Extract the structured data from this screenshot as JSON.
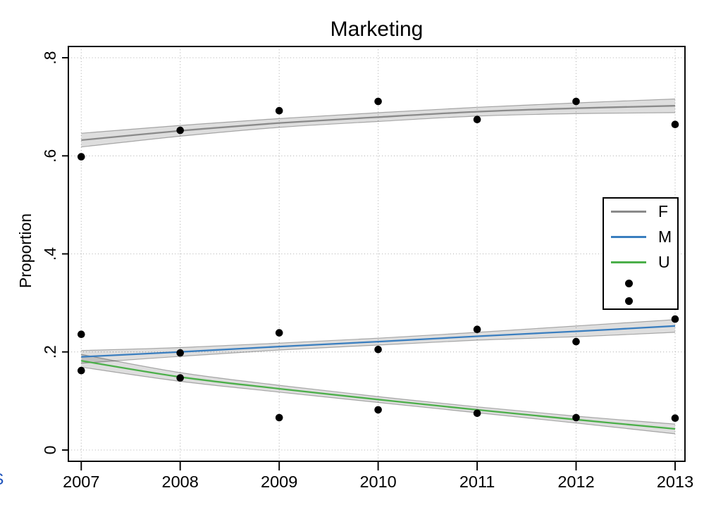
{
  "title": "Marketing",
  "edge_fragment": {
    "text": "S",
    "color": "#1f53bb"
  },
  "chart_data": {
    "type": "line",
    "title": "Marketing",
    "xlabel": "",
    "ylabel": "Proportion",
    "x": [
      2007,
      2008,
      2009,
      2010,
      2011,
      2012,
      2013
    ],
    "x_tick_labels": [
      "2007",
      "2008",
      "2009",
      "2010",
      "2011",
      "2012",
      "2013"
    ],
    "y_ticks": [
      {
        "v": 0.0,
        "label": "0"
      },
      {
        "v": 0.2,
        "label": ".2"
      },
      {
        "v": 0.4,
        "label": ".4"
      },
      {
        "v": 0.6,
        "label": ".6"
      },
      {
        "v": 0.8,
        "label": ".8"
      }
    ],
    "xlim": [
      2006.87,
      2013.1
    ],
    "ylim": [
      -0.023,
      0.823
    ],
    "grid": {
      "style": "dotted",
      "color": "#b0b0b0"
    },
    "axis_color": "#000000",
    "background": "#ffffff",
    "fit_series": [
      {
        "name": "F",
        "color": "#8a8a8a",
        "band_fill": "rgba(0,0,0,0.13)",
        "band_edge": "rgba(0,0,0,0.30)",
        "values": [
          0.632,
          0.651,
          0.667,
          0.679,
          0.69,
          0.697,
          0.702
        ],
        "ci_upper": [
          0.646,
          0.662,
          0.676,
          0.688,
          0.699,
          0.708,
          0.716
        ],
        "ci_lower": [
          0.618,
          0.64,
          0.658,
          0.67,
          0.681,
          0.686,
          0.688
        ]
      },
      {
        "name": "M",
        "color": "#3a7ebf",
        "band_fill": "rgba(0,0,0,0.13)",
        "band_edge": "rgba(0,0,0,0.30)",
        "values": [
          0.19,
          0.2,
          0.211,
          0.221,
          0.232,
          0.242,
          0.253
        ],
        "ci_upper": [
          0.203,
          0.209,
          0.218,
          0.228,
          0.24,
          0.253,
          0.266
        ],
        "ci_lower": [
          0.177,
          0.191,
          0.204,
          0.214,
          0.224,
          0.231,
          0.24
        ]
      },
      {
        "name": "U",
        "color": "#4caf4a",
        "band_fill": "rgba(0,0,0,0.13)",
        "band_edge": "rgba(0,0,0,0.30)",
        "values": [
          0.182,
          0.149,
          0.125,
          0.103,
          0.082,
          0.062,
          0.043
        ],
        "ci_upper": [
          0.195,
          0.158,
          0.132,
          0.109,
          0.088,
          0.069,
          0.053
        ],
        "ci_lower": [
          0.169,
          0.14,
          0.118,
          0.097,
          0.076,
          0.055,
          0.033
        ]
      }
    ],
    "scatter_series": [
      {
        "name": "F points",
        "color": "#000000",
        "values": [
          0.598,
          0.652,
          0.692,
          0.711,
          0.674,
          0.711,
          0.664
        ]
      },
      {
        "name": "M points",
        "color": "#000000",
        "values": [
          0.236,
          0.198,
          0.239,
          0.205,
          0.246,
          0.221,
          0.267
        ]
      },
      {
        "name": "U points",
        "color": "#000000",
        "values": [
          0.162,
          0.147,
          0.066,
          0.082,
          0.075,
          0.066,
          0.065
        ]
      }
    ],
    "legend": {
      "position": "inside-right-middle",
      "entries": [
        {
          "label": "F",
          "type": "line",
          "color": "#8a8a8a"
        },
        {
          "label": "M",
          "type": "line",
          "color": "#3a7ebf"
        },
        {
          "label": "U",
          "type": "line",
          "color": "#4caf4a"
        },
        {
          "label": "",
          "type": "dot",
          "color": "#000000"
        },
        {
          "label": "",
          "type": "dot",
          "color": "#000000"
        }
      ]
    }
  }
}
